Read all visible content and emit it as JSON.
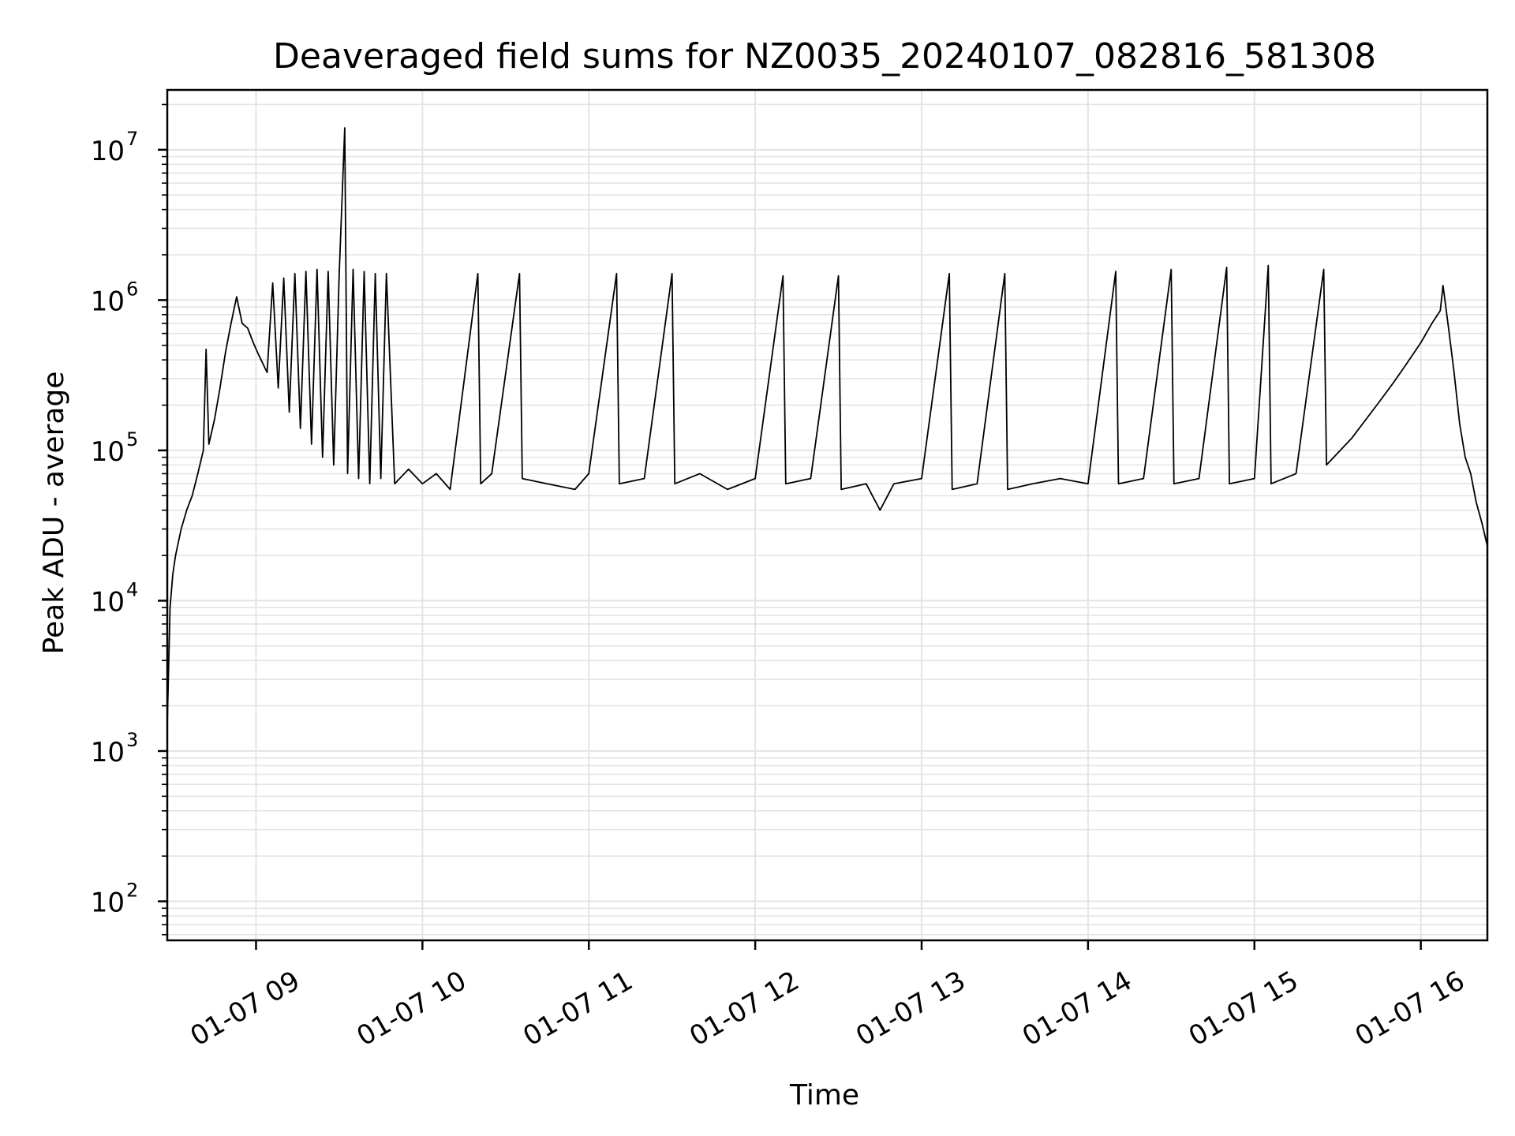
{
  "chart_data": {
    "type": "line",
    "title": "Deaveraged field sums for NZ0035_20240107_082816_581308",
    "xlabel": "Time",
    "ylabel": "Peak ADU - average",
    "yscale": "log",
    "ylim": [
      55,
      25000000
    ],
    "xlim": [
      "01-07 08:28",
      "01-07 16:24"
    ],
    "grid": true,
    "x_tick_labels": [
      "01-07 09",
      "01-07 10",
      "01-07 11",
      "01-07 12",
      "01-07 13",
      "01-07 14",
      "01-07 15",
      "01-07 16"
    ],
    "x_ticks": [
      "01-07 09:00",
      "01-07 10:00",
      "01-07 11:00",
      "01-07 12:00",
      "01-07 13:00",
      "01-07 14:00",
      "01-07 15:00",
      "01-07 16:00"
    ],
    "y_ticks": [
      {
        "value": 100,
        "base": "10",
        "exp": "2"
      },
      {
        "value": 1000,
        "base": "10",
        "exp": "3"
      },
      {
        "value": 10000,
        "base": "10",
        "exp": "4"
      },
      {
        "value": 100000,
        "base": "10",
        "exp": "5"
      },
      {
        "value": 1000000,
        "base": "10",
        "exp": "6"
      },
      {
        "value": 10000000,
        "base": "10",
        "exp": "7"
      }
    ],
    "series": [
      {
        "color": "#000000",
        "points": [
          [
            "01-07 08:28",
            1500
          ],
          [
            "01-07 08:29",
            9000
          ],
          [
            "01-07 08:30",
            15000
          ],
          [
            "01-07 08:31",
            20000
          ],
          [
            "01-07 08:33",
            30000
          ],
          [
            "01-07 08:35",
            40000
          ],
          [
            "01-07 08:37",
            50000
          ],
          [
            "01-07 08:39",
            70000
          ],
          [
            "01-07 08:41",
            100000
          ],
          [
            "01-07 08:42",
            470000
          ],
          [
            "01-07 08:43",
            110000
          ],
          [
            "01-07 08:45",
            160000
          ],
          [
            "01-07 08:47",
            260000
          ],
          [
            "01-07 08:49",
            450000
          ],
          [
            "01-07 08:51",
            700000
          ],
          [
            "01-07 08:53",
            1050000
          ],
          [
            "01-07 08:55",
            700000
          ],
          [
            "01-07 08:57",
            650000
          ],
          [
            "01-07 08:59",
            520000
          ],
          [
            "01-07 09:01",
            430000
          ],
          [
            "01-07 09:04",
            330000
          ],
          [
            "01-07 09:06",
            1300000
          ],
          [
            "01-07 09:08",
            260000
          ],
          [
            "01-07 09:10",
            1400000
          ],
          [
            "01-07 09:12",
            180000
          ],
          [
            "01-07 09:14",
            1500000
          ],
          [
            "01-07 09:16",
            140000
          ],
          [
            "01-07 09:18",
            1550000
          ],
          [
            "01-07 09:20",
            110000
          ],
          [
            "01-07 09:22",
            1600000
          ],
          [
            "01-07 09:24",
            90000
          ],
          [
            "01-07 09:26",
            1550000
          ],
          [
            "01-07 09:28",
            80000
          ],
          [
            "01-07 09:30",
            1500000
          ],
          [
            "01-07 09:32",
            14000000
          ],
          [
            "01-07 09:33",
            70000
          ],
          [
            "01-07 09:35",
            1600000
          ],
          [
            "01-07 09:37",
            65000
          ],
          [
            "01-07 09:39",
            1550000
          ],
          [
            "01-07 09:41",
            60000
          ],
          [
            "01-07 09:43",
            1500000
          ],
          [
            "01-07 09:45",
            65000
          ],
          [
            "01-07 09:47",
            1500000
          ],
          [
            "01-07 09:50",
            60000
          ],
          [
            "01-07 09:55",
            75000
          ],
          [
            "01-07 10:00",
            60000
          ],
          [
            "01-07 10:05",
            70000
          ],
          [
            "01-07 10:10",
            55000
          ],
          [
            "01-07 10:20",
            1500000
          ],
          [
            "01-07 10:21",
            60000
          ],
          [
            "01-07 10:25",
            70000
          ],
          [
            "01-07 10:35",
            1500000
          ],
          [
            "01-07 10:36",
            65000
          ],
          [
            "01-07 10:45",
            60000
          ],
          [
            "01-07 10:55",
            55000
          ],
          [
            "01-07 11:00",
            70000
          ],
          [
            "01-07 11:10",
            1500000
          ],
          [
            "01-07 11:11",
            60000
          ],
          [
            "01-07 11:20",
            65000
          ],
          [
            "01-07 11:30",
            1500000
          ],
          [
            "01-07 11:31",
            60000
          ],
          [
            "01-07 11:40",
            70000
          ],
          [
            "01-07 11:50",
            55000
          ],
          [
            "01-07 12:00",
            65000
          ],
          [
            "01-07 12:10",
            1450000
          ],
          [
            "01-07 12:11",
            60000
          ],
          [
            "01-07 12:20",
            65000
          ],
          [
            "01-07 12:30",
            1450000
          ],
          [
            "01-07 12:31",
            55000
          ],
          [
            "01-07 12:40",
            60000
          ],
          [
            "01-07 12:45",
            40000
          ],
          [
            "01-07 12:50",
            60000
          ],
          [
            "01-07 13:00",
            65000
          ],
          [
            "01-07 13:10",
            1500000
          ],
          [
            "01-07 13:11",
            55000
          ],
          [
            "01-07 13:20",
            60000
          ],
          [
            "01-07 13:30",
            1500000
          ],
          [
            "01-07 13:31",
            55000
          ],
          [
            "01-07 13:40",
            60000
          ],
          [
            "01-07 13:50",
            65000
          ],
          [
            "01-07 14:00",
            60000
          ],
          [
            "01-07 14:10",
            1550000
          ],
          [
            "01-07 14:11",
            60000
          ],
          [
            "01-07 14:20",
            65000
          ],
          [
            "01-07 14:30",
            1600000
          ],
          [
            "01-07 14:31",
            60000
          ],
          [
            "01-07 14:40",
            65000
          ],
          [
            "01-07 14:50",
            1650000
          ],
          [
            "01-07 14:51",
            60000
          ],
          [
            "01-07 15:00",
            65000
          ],
          [
            "01-07 15:05",
            1700000
          ],
          [
            "01-07 15:06",
            60000
          ],
          [
            "01-07 15:15",
            70000
          ],
          [
            "01-07 15:25",
            1600000
          ],
          [
            "01-07 15:26",
            80000
          ],
          [
            "01-07 15:35",
            120000
          ],
          [
            "01-07 15:45",
            210000
          ],
          [
            "01-07 15:50",
            280000
          ],
          [
            "01-07 15:55",
            380000
          ],
          [
            "01-07 16:00",
            520000
          ],
          [
            "01-07 16:04",
            700000
          ],
          [
            "01-07 16:07",
            850000
          ],
          [
            "01-07 16:08",
            1250000
          ],
          [
            "01-07 16:10",
            650000
          ],
          [
            "01-07 16:12",
            330000
          ],
          [
            "01-07 16:14",
            150000
          ],
          [
            "01-07 16:16",
            90000
          ],
          [
            "01-07 16:18",
            70000
          ],
          [
            "01-07 16:20",
            45000
          ],
          [
            "01-07 16:22",
            33000
          ],
          [
            "01-07 16:24",
            23000
          ]
        ]
      }
    ]
  }
}
